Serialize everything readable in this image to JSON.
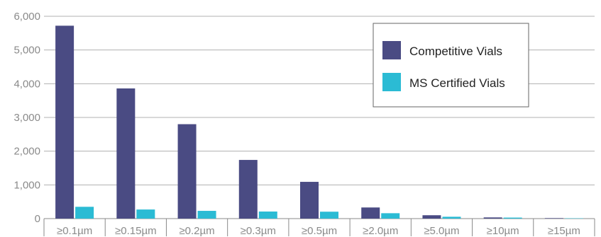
{
  "chart_data": {
    "type": "bar",
    "categories": [
      "≥0.1µm",
      "≥0.15µm",
      "≥0.2µm",
      "≥0.3µm",
      "≥0.5µm",
      "≥2.0µm",
      "≥5.0µm",
      "≥10µm",
      "≥15µm"
    ],
    "series": [
      {
        "name": "Competitive Vials",
        "color": "#4a4b83",
        "values": [
          5720,
          3860,
          2800,
          1740,
          1090,
          330,
          100,
          35,
          15
        ]
      },
      {
        "name": "MS Certified Vials",
        "color": "#2bbbd4",
        "values": [
          350,
          270,
          230,
          210,
          205,
          160,
          55,
          30,
          10
        ]
      }
    ],
    "ylim": [
      0,
      6000
    ],
    "yticks": [
      0,
      1000,
      2000,
      3000,
      4000,
      5000,
      6000
    ],
    "ytick_labels": [
      "0",
      "1,000",
      "2,000",
      "3,000",
      "4,000",
      "5,000",
      "6,000"
    ],
    "grid": true,
    "legend_position": "top-right",
    "title": "",
    "xlabel": "",
    "ylabel": ""
  }
}
